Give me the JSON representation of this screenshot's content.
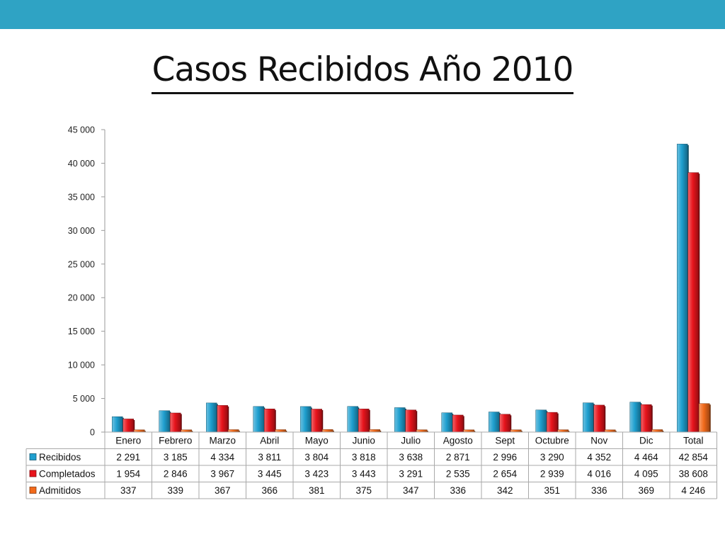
{
  "slide": {
    "title": "Casos Recibidos Año 2010",
    "band_color": "#2fa3c4"
  },
  "chart_data": {
    "type": "bar",
    "title": "",
    "xlabel": "",
    "ylabel": "",
    "ylim": [
      0,
      45000
    ],
    "y_ticks": [
      0,
      5000,
      10000,
      15000,
      20000,
      25000,
      30000,
      35000,
      40000,
      45000
    ],
    "y_tick_labels": [
      "0",
      "5 000",
      "10 000",
      "15 000",
      "20 000",
      "25 000",
      "30 000",
      "35 000",
      "40 000",
      "45 000"
    ],
    "grid": false,
    "legend": "data-table-left",
    "categories": [
      "Enero",
      "Febrero",
      "Marzo",
      "Abril",
      "Mayo",
      "Junio",
      "Julio",
      "Agosto",
      "Sept",
      "Octubre",
      "Nov",
      "Dic",
      "Total"
    ],
    "series": [
      {
        "name": "Recibidos",
        "color": "#1f9fcf",
        "values": [
          2291,
          3185,
          4334,
          3811,
          3804,
          3818,
          3638,
          2871,
          2996,
          3290,
          4352,
          4464,
          42854
        ],
        "labels": [
          "2 291",
          "3 185",
          "4 334",
          "3 811",
          "3 804",
          "3 818",
          "3 638",
          "2 871",
          "2 996",
          "3 290",
          "4 352",
          "4 464",
          "42 854"
        ]
      },
      {
        "name": "Completados",
        "color": "#e8141c",
        "values": [
          1954,
          2846,
          3967,
          3445,
          3423,
          3443,
          3291,
          2535,
          2654,
          2939,
          4016,
          4095,
          38608
        ],
        "labels": [
          "1 954",
          "2 846",
          "3 967",
          "3 445",
          "3 423",
          "3 443",
          "3 291",
          "2 535",
          "2 654",
          "2 939",
          "4 016",
          "4 095",
          "38 608"
        ]
      },
      {
        "name": "Admitidos",
        "color": "#f26a1b",
        "values": [
          337,
          339,
          367,
          366,
          381,
          375,
          347,
          336,
          342,
          351,
          336,
          369,
          4246
        ],
        "labels": [
          "337",
          "339",
          "367",
          "366",
          "381",
          "375",
          "347",
          "336",
          "342",
          "351",
          "336",
          "369",
          "4 246"
        ]
      }
    ]
  }
}
